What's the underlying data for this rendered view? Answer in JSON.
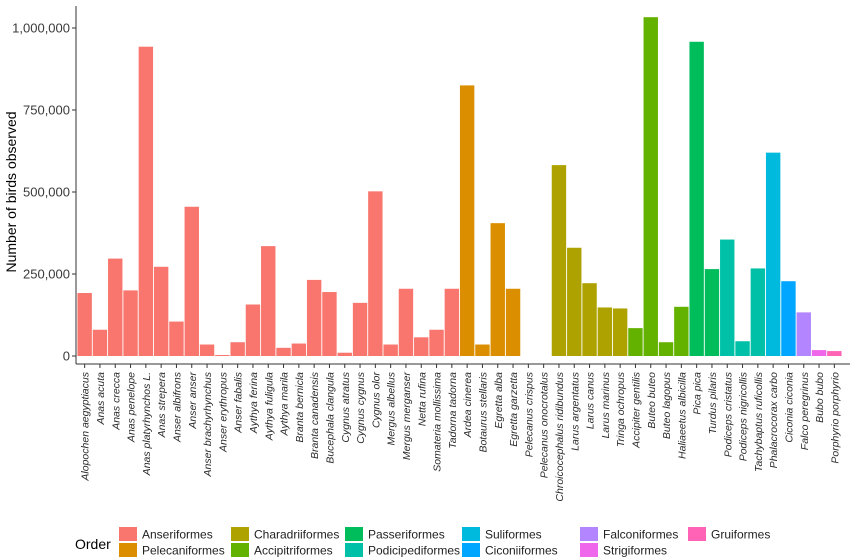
{
  "chart_data": {
    "type": "bar",
    "title": "",
    "xlabel": "",
    "ylabel": "Number of birds observed",
    "ylim": [
      0,
      1050000
    ],
    "yticks": [
      0,
      250000,
      500000,
      750000,
      1000000
    ],
    "ytick_labels": [
      "0",
      "250,000",
      "500,000",
      "750,000",
      "1,000,000"
    ],
    "grid": false,
    "legend_position": "bottom",
    "legend_title": "Order",
    "orders": [
      {
        "name": "Anseriformes",
        "color": "#F8766D"
      },
      {
        "name": "Pelecaniformes",
        "color": "#DB8E00"
      },
      {
        "name": "Charadriiformes",
        "color": "#AEA200"
      },
      {
        "name": "Accipitriformes",
        "color": "#64B200"
      },
      {
        "name": "Passeriformes",
        "color": "#00BD5C"
      },
      {
        "name": "Podicipediformes",
        "color": "#00C1A7"
      },
      {
        "name": "Suliformes",
        "color": "#00BADE"
      },
      {
        "name": "Ciconiiformes",
        "color": "#00A6FF"
      },
      {
        "name": "Falconiformes",
        "color": "#B385FF"
      },
      {
        "name": "Strigiformes",
        "color": "#EF67EB"
      },
      {
        "name": "Gruiformes",
        "color": "#FF63B6"
      }
    ],
    "categories": [
      "Alopochen aegyptiacus",
      "Anas acuta",
      "Anas crecca",
      "Anas penelope",
      "Anas platyrhynchos L.",
      "Anas strepera",
      "Anser albifrons",
      "Anser anser",
      "Anser brachyrhynchus",
      "Anser erythropus",
      "Anser fabalis",
      "Aythya ferina",
      "Aythya fuligula",
      "Aythya marila",
      "Branta bernicla",
      "Branta canadensis",
      "Bucephala clangula",
      "Cygnus atratus",
      "Cygnus cygnus",
      "Cygnus olor",
      "Mergus albellus",
      "Mergus merganser",
      "Netta rufina",
      "Somateria mollissima",
      "Tadorna tadorna",
      "Ardea cinerea",
      "Botaurus stellaris",
      "Egretta alba",
      "Egretta garzetta",
      "Pelecanus crispus",
      "Pelecanus onocrotalus",
      "Chroicocephalus ridibundus",
      "Larus argentatus",
      "Larus canus",
      "Larus marinus",
      "Tringa ochropus",
      "Accipiter gentilis",
      "Buteo buteo",
      "Buteo lagopus",
      "Haliaeetus albicilla",
      "Pica pica",
      "Turdus pilaris",
      "Podiceps cristatus",
      "Podiceps nigricollis",
      "Tachybaptus ruficollis",
      "Phalacrocorax carbo",
      "Ciconia ciconia",
      "Falco peregrinus",
      "Bubo bubo",
      "Porphyrio porphyrio"
    ],
    "values": [
      192000,
      80000,
      297000,
      200000,
      943000,
      272000,
      105000,
      455000,
      35000,
      3000,
      42000,
      157000,
      335000,
      25000,
      38000,
      232000,
      195000,
      10000,
      162000,
      502000,
      35000,
      205000,
      57000,
      80000,
      205000,
      825000,
      35000,
      405000,
      205000,
      0,
      0,
      582000,
      330000,
      222000,
      148000,
      145000,
      85000,
      1033000,
      42000,
      150000,
      958000,
      265000,
      355000,
      45000,
      267000,
      620000,
      228000,
      133000,
      18000,
      15000
    ],
    "category_order": [
      "Anseriformes",
      "Anseriformes",
      "Anseriformes",
      "Anseriformes",
      "Anseriformes",
      "Anseriformes",
      "Anseriformes",
      "Anseriformes",
      "Anseriformes",
      "Anseriformes",
      "Anseriformes",
      "Anseriformes",
      "Anseriformes",
      "Anseriformes",
      "Anseriformes",
      "Anseriformes",
      "Anseriformes",
      "Anseriformes",
      "Anseriformes",
      "Anseriformes",
      "Anseriformes",
      "Anseriformes",
      "Anseriformes",
      "Anseriformes",
      "Anseriformes",
      "Pelecaniformes",
      "Pelecaniformes",
      "Pelecaniformes",
      "Pelecaniformes",
      "Pelecaniformes",
      "Pelecaniformes",
      "Charadriiformes",
      "Charadriiformes",
      "Charadriiformes",
      "Charadriiformes",
      "Charadriiformes",
      "Accipitriformes",
      "Accipitriformes",
      "Accipitriformes",
      "Accipitriformes",
      "Passeriformes",
      "Passeriformes",
      "Podicipediformes",
      "Podicipediformes",
      "Podicipediformes",
      "Suliformes",
      "Ciconiiformes",
      "Falconiformes",
      "Strigiformes",
      "Gruiformes"
    ]
  }
}
